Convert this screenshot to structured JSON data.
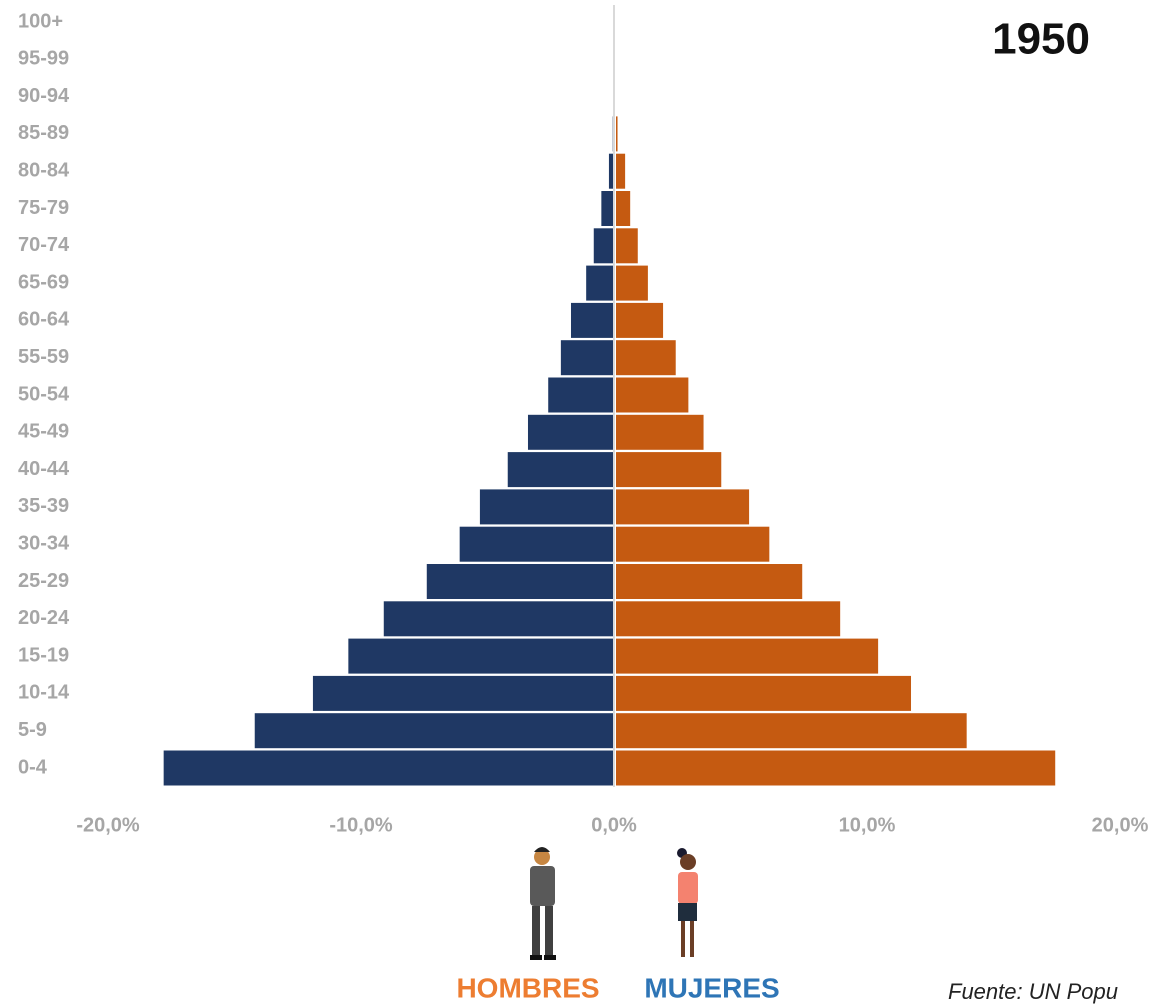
{
  "chart_data": {
    "type": "pyramid",
    "title": "1950",
    "categories": [
      "0-4",
      "5-9",
      "10-14",
      "15-19",
      "20-24",
      "25-29",
      "30-34",
      "35-39",
      "40-44",
      "45-49",
      "50-54",
      "55-59",
      "60-64",
      "65-69",
      "70-74",
      "75-79",
      "80-84",
      "85-89",
      "90-94",
      "95-99",
      "100+"
    ],
    "series": [
      {
        "name": "HOMBRES",
        "color": "#1f3864",
        "label_color": "#ed7d31",
        "values": [
          -17.8,
          -14.2,
          -11.9,
          -10.5,
          -9.1,
          -7.4,
          -6.1,
          -5.3,
          -4.2,
          -3.4,
          -2.6,
          -2.1,
          -1.7,
          -1.1,
          -0.8,
          -0.5,
          -0.2,
          -0.05,
          0,
          0,
          0
        ]
      },
      {
        "name": "MUJERES",
        "color": "#c55a11",
        "label_color": "#2e75b6",
        "values": [
          17.4,
          13.9,
          11.7,
          10.4,
          8.9,
          7.4,
          6.1,
          5.3,
          4.2,
          3.5,
          2.9,
          2.4,
          1.9,
          1.3,
          0.9,
          0.6,
          0.4,
          0.1,
          0,
          0,
          0
        ]
      }
    ],
    "xlim": [
      -20,
      20
    ],
    "xticks": [
      {
        "value": -20,
        "label": "-20,0%"
      },
      {
        "value": -10,
        "label": "-10,0%"
      },
      {
        "value": 0,
        "label": "0,0%"
      },
      {
        "value": 10,
        "label": "10,0%"
      },
      {
        "value": 20,
        "label": "20,0%"
      }
    ],
    "source": "Fuente: UN Popu"
  }
}
